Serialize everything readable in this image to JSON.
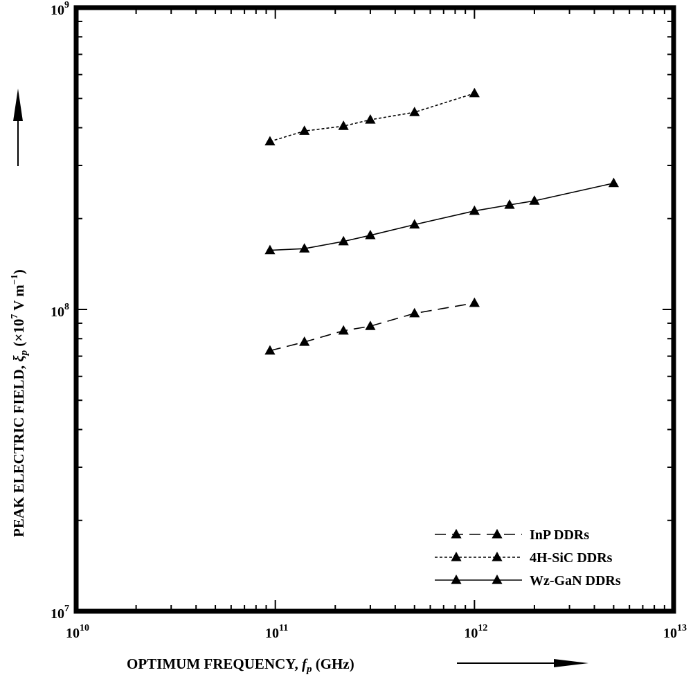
{
  "chart_data": {
    "type": "line",
    "xscale": "log",
    "yscale": "log",
    "xlim": [
      10000000000.0,
      10000000000000.0
    ],
    "ylim": [
      10000000.0,
      1000000000.0
    ],
    "xlabel": {
      "main": "OPTIMUM FREQUENCY, ",
      "sym": "f",
      "sub": "p",
      "unit": " (GHz)"
    },
    "ylabel": {
      "main": "PEAK ELECTRIC FIELD, ",
      "sym": "ξ",
      "sub": "p",
      "unit_pre": " (×10",
      "unit_exp": "7",
      "unit_mid": " V m",
      "unit_exp2": "−1",
      "unit_post": ")"
    },
    "x_ticks": [
      {
        "value": 10000000000.0,
        "base": "10",
        "exp": "10"
      },
      {
        "value": 100000000000.0,
        "base": "10",
        "exp": "11"
      },
      {
        "value": 1000000000000.0,
        "base": "10",
        "exp": "12"
      },
      {
        "value": 10000000000000.0,
        "base": "10",
        "exp": "13"
      }
    ],
    "y_ticks": [
      {
        "value": 10000000.0,
        "base": "10",
        "exp": "7"
      },
      {
        "value": 100000000.0,
        "base": "10",
        "exp": "8"
      },
      {
        "value": 1000000000.0,
        "base": "10",
        "exp": "9"
      }
    ],
    "legend_position": "bottom-right",
    "series": [
      {
        "name": "InP DDRs",
        "dash": "long-dash",
        "marker": "triangle",
        "x": [
          94000000000.0,
          140000000000.0,
          220000000000.0,
          300000000000.0,
          500000000000.0,
          1000000000000.0
        ],
        "y": [
          73000000.0,
          78000000.0,
          85000000.0,
          88000000.0,
          97000000.0,
          105000000.0
        ]
      },
      {
        "name": "4H-SiC DDRs",
        "dash": "dotted",
        "marker": "triangle",
        "x": [
          94000000000.0,
          140000000000.0,
          220000000000.0,
          300000000000.0,
          500000000000.0,
          1000000000000.0
        ],
        "y": [
          360000000.0,
          390000000.0,
          405000000.0,
          425000000.0,
          450000000.0,
          520000000.0
        ]
      },
      {
        "name": "Wz-GaN DDRs",
        "dash": "solid",
        "marker": "triangle",
        "x": [
          94000000000.0,
          140000000000.0,
          220000000000.0,
          300000000000.0,
          500000000000.0,
          1000000000000.0,
          1500000000000.0,
          2000000000000.0,
          5000000000000.0
        ],
        "y": [
          157000000.0,
          159000000.0,
          168000000.0,
          176000000.0,
          191000000.0,
          212000000.0,
          222000000.0,
          229000000.0,
          262000000.0
        ]
      }
    ]
  }
}
